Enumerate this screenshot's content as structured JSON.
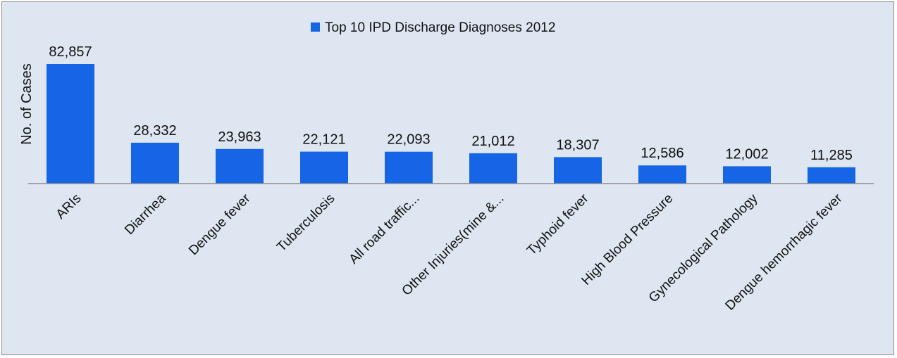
{
  "chart_data": {
    "type": "bar",
    "legend": {
      "label": "Top 10 IPD Discharge Diagnoses 2012",
      "placement": "top-center"
    },
    "ylabel": "No. of Cases",
    "xlabel": "",
    "ylim": [
      0,
      90000
    ],
    "grid": false,
    "bar_color": "#1565e6",
    "categories": [
      "ARIs",
      "Diarrhea",
      "Dengue fever",
      "Tuberculosis",
      "All road traffic...",
      "Other Injuries(mine &...",
      "Typhoid fever",
      "High Blood Pressure",
      "Gynecological Pathology",
      "Dengue hemorrhagic fever"
    ],
    "values": [
      82857,
      28332,
      23963,
      22121,
      22093,
      21012,
      18307,
      12586,
      12002,
      11285
    ],
    "value_labels": [
      "82,857",
      "28,332",
      "23,963",
      "22,121",
      "22,093",
      "21,012",
      "18,307",
      "12,586",
      "12,002",
      "11,285"
    ]
  }
}
